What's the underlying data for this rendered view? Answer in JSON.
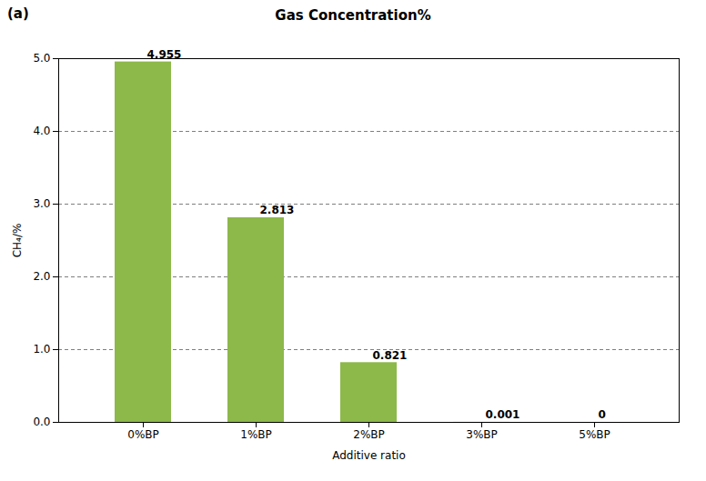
{
  "chart_data": {
    "type": "bar",
    "title": "Gas Concentration%",
    "annotations": [
      "(a)"
    ],
    "xlabel": "Additive ratio",
    "ylabel": "CH₄/%",
    "categories": [
      "0%BP",
      "1%BP",
      "2%BP",
      "3%BP",
      "5%BP"
    ],
    "values": [
      4.955,
      2.813,
      0.821,
      0.001,
      0
    ],
    "color": "#8db84a",
    "ylim": [
      0,
      5
    ],
    "yticks": [
      0,
      1,
      2,
      3,
      4,
      5
    ],
    "grid": true,
    "data_labels": true
  }
}
